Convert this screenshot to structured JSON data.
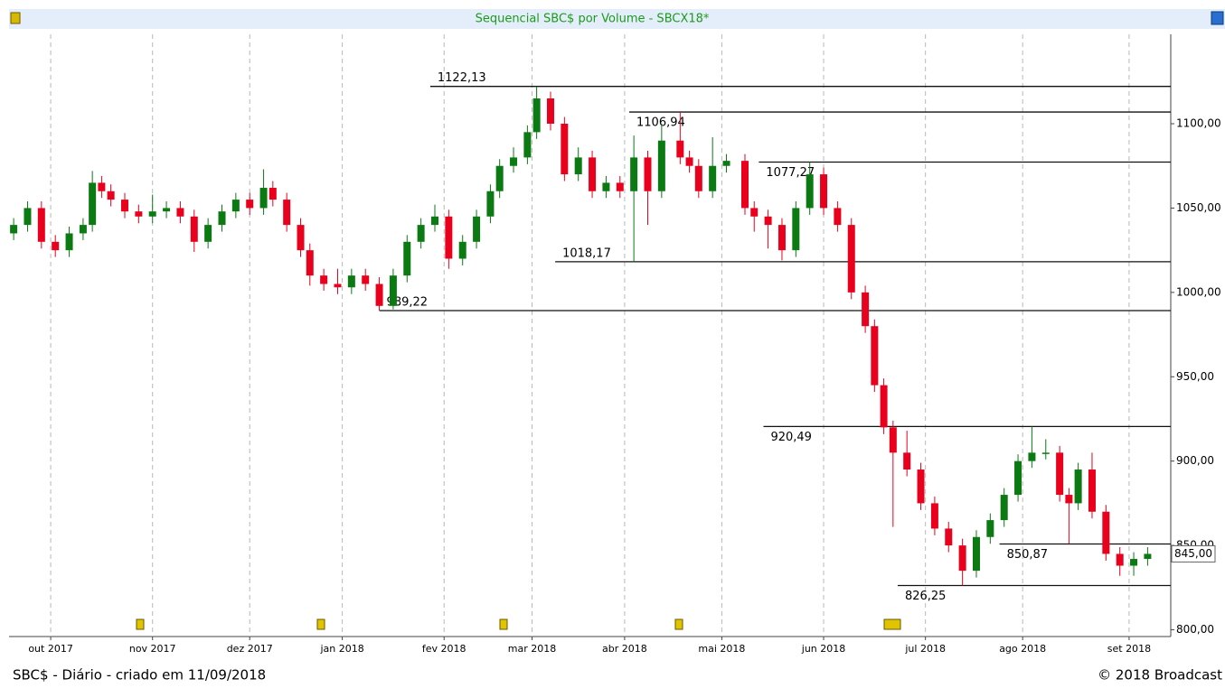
{
  "chart_data": {
    "type": "candlestick",
    "title": "Sequencial SBC$ por Volume - SBCX18*",
    "footer_left": "SBC$ - Diário - criado em 11/09/2018",
    "footer_right": "© 2018 Broadcast",
    "up_color": "#0b7a12",
    "down_color": "#e8001c",
    "xlim": [
      -1,
      250
    ],
    "xticks": [
      {
        "value": 8,
        "label": "out 2017"
      },
      {
        "value": 30,
        "label": "nov 2017"
      },
      {
        "value": 51,
        "label": "dez 2017"
      },
      {
        "value": 71,
        "label": "jan 2018"
      },
      {
        "value": 93,
        "label": "fev 2018"
      },
      {
        "value": 112,
        "label": "mar 2018"
      },
      {
        "value": 132,
        "label": "abr 2018"
      },
      {
        "value": 153,
        "label": "mai 2018"
      },
      {
        "value": 175,
        "label": "jun 2018"
      },
      {
        "value": 197,
        "label": "jul 2018"
      },
      {
        "value": 218,
        "label": "ago 2018"
      },
      {
        "value": 241,
        "label": "set 2018"
      }
    ],
    "ylim": [
      796,
      1153
    ],
    "yticks": [
      {
        "value": 800,
        "label": "800,00"
      },
      {
        "value": 850,
        "label": "850,00"
      },
      {
        "value": 900,
        "label": "900,00"
      },
      {
        "value": 950,
        "label": "950,00"
      },
      {
        "value": 1000,
        "label": "1000,00"
      },
      {
        "value": 1050,
        "label": "1050,00"
      },
      {
        "value": 1100,
        "label": "1100,00"
      }
    ],
    "grid": true,
    "last": {
      "value": 845,
      "label": "845,00"
    },
    "levels": [
      {
        "value": 1122.13,
        "label": "1122,13",
        "from": 90
      },
      {
        "value": 1106.94,
        "label": "1106,94",
        "from": 133
      },
      {
        "value": 1077.27,
        "label": "1077,27",
        "from": 161
      },
      {
        "value": 1018.17,
        "label": "1018,17",
        "from": 117
      },
      {
        "value": 989.22,
        "label": "989,22",
        "from": 79
      },
      {
        "value": 920.49,
        "label": "920,49",
        "from": 162
      },
      {
        "value": 850.87,
        "label": "850,87",
        "from": 213
      },
      {
        "value": 826.25,
        "label": "826,25",
        "from": 191
      }
    ],
    "x": [
      0,
      3,
      6,
      9,
      12,
      15,
      17,
      19,
      21,
      24,
      27,
      30,
      33,
      36,
      39,
      42,
      45,
      48,
      51,
      54,
      56,
      59,
      62,
      64,
      67,
      70,
      73,
      76,
      79,
      82,
      85,
      88,
      91,
      94,
      97,
      100,
      103,
      105,
      108,
      111,
      113,
      116,
      119,
      122,
      125,
      128,
      131,
      134,
      137,
      140,
      144,
      146,
      148,
      151,
      154,
      158,
      160,
      163,
      166,
      169,
      172,
      175,
      178,
      181,
      184,
      186,
      188,
      190,
      193,
      196,
      199,
      202,
      205,
      208,
      211,
      214,
      217,
      220,
      223,
      226,
      228,
      230,
      233,
      236,
      239,
      242,
      245
    ],
    "open": [
      1035,
      1040,
      1050,
      1030,
      1025,
      1035,
      1040,
      1065,
      1060,
      1055,
      1048,
      1045,
      1048,
      1050,
      1045,
      1030,
      1040,
      1048,
      1055,
      1050,
      1062,
      1055,
      1040,
      1025,
      1010,
      1005,
      1003,
      1010,
      1005,
      992,
      1010,
      1030,
      1040,
      1045,
      1020,
      1030,
      1045,
      1060,
      1075,
      1080,
      1095,
      1115,
      1100,
      1070,
      1080,
      1060,
      1065,
      1060,
      1080,
      1060,
      1090,
      1080,
      1075,
      1060,
      1075,
      1078,
      1050,
      1045,
      1040,
      1025,
      1050,
      1070,
      1050,
      1040,
      1000,
      980,
      945,
      920,
      905,
      895,
      875,
      860,
      850,
      835,
      855,
      865,
      880,
      900,
      905,
      905,
      880,
      875,
      895,
      870,
      845,
      838,
      842
    ],
    "high": [
      1044,
      1054,
      1054,
      1034,
      1039,
      1044,
      1072,
      1069,
      1064,
      1059,
      1052,
      1058,
      1054,
      1054,
      1049,
      1044,
      1052,
      1059,
      1059,
      1073,
      1066,
      1059,
      1044,
      1029,
      1014,
      1014,
      1014,
      1014,
      1009,
      1014,
      1034,
      1044,
      1052,
      1049,
      1034,
      1049,
      1064,
      1079,
      1086,
      1099,
      1122.13,
      1119,
      1104,
      1086,
      1084,
      1069,
      1069,
      1093,
      1084,
      1100,
      1106.94,
      1084,
      1079,
      1092,
      1082,
      1082,
      1054,
      1049,
      1044,
      1054,
      1077.27,
      1074,
      1054,
      1044,
      1004,
      984,
      949,
      924,
      918,
      899,
      879,
      864,
      854,
      859,
      869,
      884,
      904,
      920.49,
      913,
      909,
      884,
      899,
      905,
      874,
      849,
      846,
      849
    ],
    "low": [
      1031,
      1036,
      1026,
      1021,
      1021,
      1031,
      1036,
      1056,
      1051,
      1044,
      1041,
      1041,
      1044,
      1041,
      1024,
      1026,
      1036,
      1044,
      1046,
      1046,
      1051,
      1036,
      1021,
      1004,
      1001,
      999,
      999,
      1001,
      989.22,
      990,
      1006,
      1026,
      1036,
      1014,
      1016,
      1026,
      1041,
      1056,
      1071,
      1076,
      1091,
      1096,
      1066,
      1066,
      1056,
      1056,
      1056,
      1018.17,
      1040,
      1056,
      1076,
      1071,
      1056,
      1056,
      1071,
      1046,
      1036,
      1026,
      1019,
      1021,
      1046,
      1046,
      1036,
      996,
      976,
      941,
      916,
      861,
      891,
      871,
      856,
      846,
      826.25,
      831,
      851,
      861,
      876,
      896,
      901,
      876,
      851,
      871,
      866,
      841,
      832,
      832,
      838
    ],
    "close": [
      1040,
      1050,
      1030,
      1025,
      1035,
      1040,
      1065,
      1060,
      1055,
      1048,
      1045,
      1048,
      1050,
      1045,
      1030,
      1040,
      1048,
      1055,
      1050,
      1062,
      1055,
      1040,
      1025,
      1010,
      1005,
      1003,
      1010,
      1005,
      992,
      1010,
      1030,
      1040,
      1045,
      1020,
      1030,
      1045,
      1060,
      1075,
      1080,
      1095,
      1115,
      1100,
      1070,
      1080,
      1060,
      1065,
      1060,
      1080,
      1060,
      1090,
      1080,
      1075,
      1060,
      1075,
      1078,
      1050,
      1045,
      1040,
      1025,
      1050,
      1070,
      1050,
      1040,
      1000,
      980,
      945,
      920,
      905,
      895,
      875,
      860,
      850,
      835,
      855,
      865,
      880,
      900,
      905,
      905,
      880,
      875,
      895,
      870,
      845,
      838,
      842,
      845
    ]
  }
}
